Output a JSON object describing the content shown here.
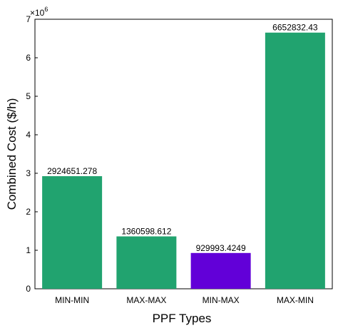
{
  "chart_data": {
    "type": "bar",
    "title": "",
    "xlabel": "PPF Types",
    "ylabel": "Combined Cost ($/h)",
    "categories": [
      "MIN-MIN",
      "MAX-MAX",
      "MIN-MAX",
      "MAX-MIN"
    ],
    "values": [
      2924651.278,
      1360598.612,
      929993.4249,
      6652832.43
    ],
    "data_labels": [
      "2924651.278",
      "1360598.612",
      "929993.4249",
      "6652832.43"
    ],
    "bar_colors": [
      "#21a36f",
      "#21a36f",
      "#6200d8",
      "#21a36f"
    ],
    "ylim": [
      0,
      7000000
    ],
    "yticks": [
      0,
      1000000,
      2000000,
      3000000,
      4000000,
      5000000,
      6000000,
      7000000
    ],
    "ytick_labels": [
      "0",
      "1",
      "2",
      "3",
      "4",
      "5",
      "6",
      "7"
    ],
    "y_multiplier": {
      "base": "×10",
      "exponent": "6"
    },
    "grid": false
  }
}
